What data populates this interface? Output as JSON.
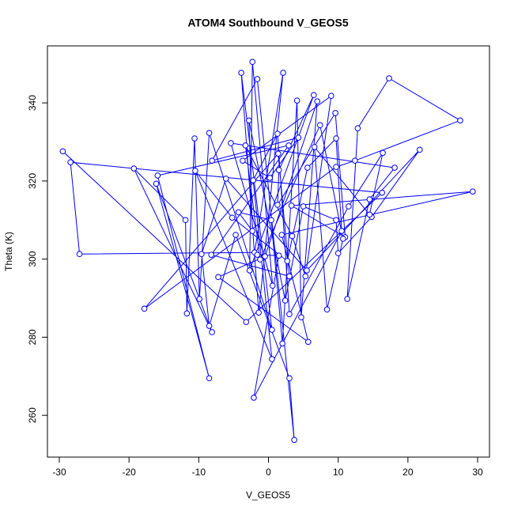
{
  "chart_data": {
    "type": "scatter-line",
    "title": "ATOM4 Southbound V_GEOS5",
    "x_label": "V_GEOS5",
    "y_label": "Theta (K)",
    "color": "#0000ff",
    "xlim": [
      -31.7,
      31.7
    ],
    "ylim": [
      249.3,
      354.6
    ],
    "xticks": [
      -30,
      -20,
      -10,
      0,
      10,
      20,
      30
    ],
    "yticks": [
      260,
      280,
      300,
      320,
      340
    ],
    "x": [
      -29.5,
      -3.2,
      16.3,
      -28.4,
      -27.1,
      -2.0,
      2.1,
      -1.4,
      -3.9,
      0.5,
      -8.5,
      -9.9,
      -10.6,
      -11.7,
      -11.9,
      -19.3,
      -8.1,
      -16.1,
      -8.5,
      -15.9,
      2.9,
      -8.2,
      3.0,
      1.4,
      -17.8,
      9.7,
      12.4,
      27.5,
      17.3,
      12.8,
      11.3,
      14.5,
      18.1,
      -5.4,
      0.6,
      -2.3,
      -2.7,
      6.5,
      1.5,
      1.3,
      9.6,
      11.0,
      3.3,
      29.3,
      1.9,
      5.7,
      -7.2,
      -0.5,
      7.0,
      4.7,
      4.1,
      2.0,
      0.4,
      -4.3,
      -2.3,
      -2.8,
      2.4,
      5.0,
      9.7,
      10.0,
      14.8,
      21.7,
      5.5,
      -6.1,
      -9.6,
      -8.5,
      -4.7,
      3.0,
      3.7,
      -1.6,
      -8.1,
      4.3,
      0.2,
      -3.7,
      9.0,
      5.3,
      3.4,
      -3.3,
      -1.2,
      7.4,
      10.7,
      8.4,
      6.6,
      14.5,
      16.4,
      11.5,
      3.0,
      1.3,
      -2.2,
      0.5,
      -10.5,
      -5.2,
      2.7,
      5.6,
      9.7,
      10.5,
      -2.1,
      1.5,
      -1.6
    ],
    "y": [
      327.6,
      283.9,
      317.0,
      324.8,
      301.3,
      301.7,
      347.7,
      286.3,
      347.7,
      281.9,
      332.3,
      289.8,
      330.9,
      286.1,
      310.0,
      323.2,
      281.3,
      319.3,
      269.5,
      321.4,
      329.1,
      301.1,
      295.6,
      327.0,
      287.3,
      323.6,
      325.2,
      335.5,
      346.3,
      333.5,
      289.8,
      315.3,
      323.4,
      329.7,
      293.2,
      350.5,
      297.1,
      342.0,
      322.8,
      313.9,
      337.4,
      305.6,
      313.7,
      317.3,
      306.2,
      278.8,
      295.4,
      300.7,
      340.4,
      285.1,
      340.6,
      278.4,
      310.0,
      312.0,
      307.2,
      335.5,
      289.4,
      313.5,
      310.0,
      301.5,
      310.8,
      328.0,
      297.1,
      320.6,
      301.3,
      282.9,
      306.2,
      269.5,
      253.7,
      346.1,
      325.2,
      331.1,
      320.8,
      325.2,
      341.8,
      295.6,
      305.9,
      329.1,
      299.9,
      334.3,
      305.2,
      287.1,
      328.7,
      311.4,
      327.2,
      313.5,
      285.9,
      332.1,
      320.2,
      274.4,
      322.6,
      310.6,
      299.5,
      323.4,
      330.9,
      307.2,
      264.5,
      300.9,
      301.1
    ]
  }
}
